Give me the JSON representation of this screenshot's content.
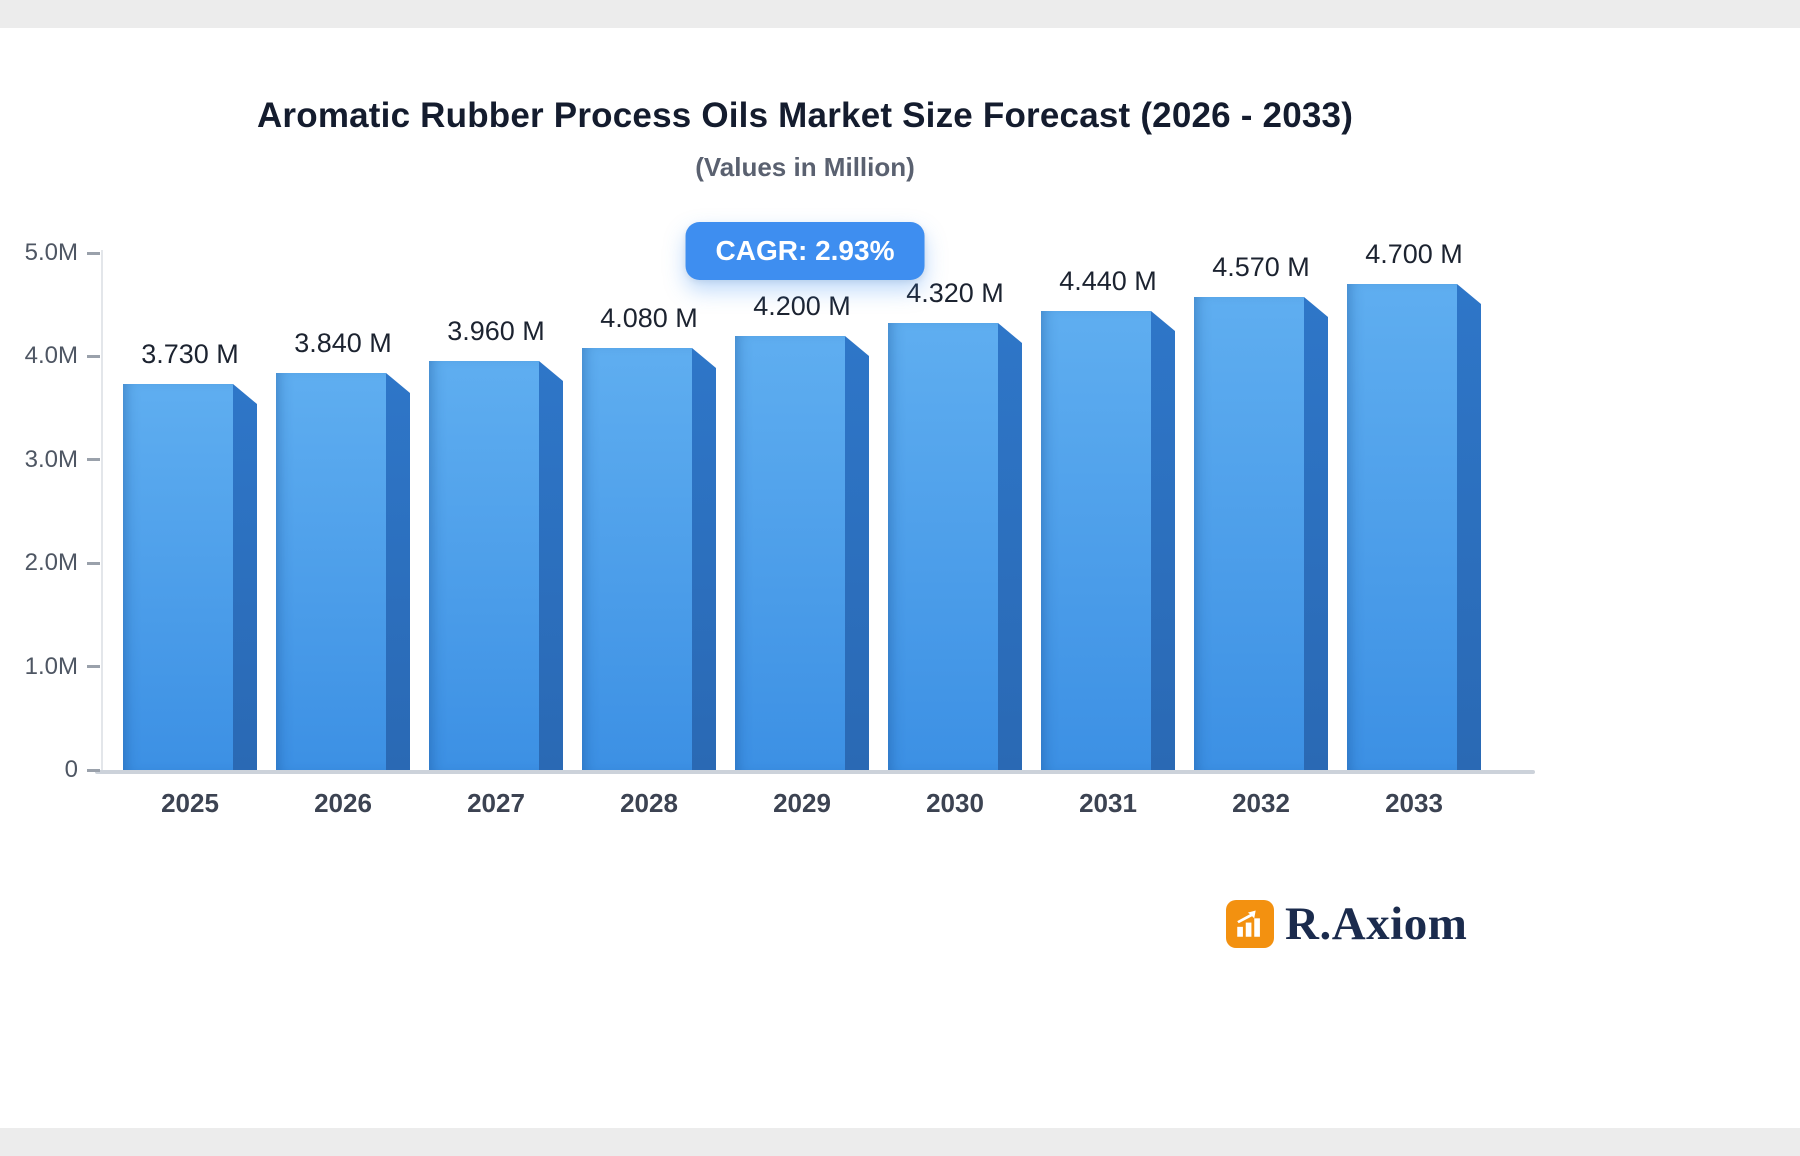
{
  "header": {
    "title": "Aromatic Rubber Process Oils Market Size Forecast (2026 - 2033)",
    "subtitle": "(Values in Million)"
  },
  "badge": {
    "label": "CAGR: 2.93%",
    "bg_color": "#3e8ef0",
    "text_color": "#ffffff"
  },
  "chart_data": {
    "type": "bar",
    "title": "Aromatic Rubber Process Oils Market Size Forecast (2026 - 2033)",
    "subtitle": "(Values in Million)",
    "categories": [
      "2025",
      "2026",
      "2027",
      "2028",
      "2029",
      "2030",
      "2031",
      "2032",
      "2033"
    ],
    "values": [
      3.73,
      3.84,
      3.96,
      4.08,
      4.2,
      4.32,
      4.44,
      4.57,
      4.7
    ],
    "value_labels": [
      "3.730 M",
      "3.840 M",
      "3.960 M",
      "4.080 M",
      "4.200 M",
      "4.320 M",
      "4.440 M",
      "4.570 M",
      "4.700 M"
    ],
    "unit": "Million",
    "cagr": "2.93%",
    "xlabel": "",
    "ylabel": "",
    "ylim": [
      0,
      5
    ],
    "yticks": [
      "0",
      "1.0M",
      "2.0M",
      "3.0M",
      "4.0M",
      "5.0M"
    ],
    "grid": false,
    "legend": "none",
    "colors": {
      "bar_face_top": "#5faef0",
      "bar_face_bottom": "#3c90e4",
      "bar_side": "#2e76c8",
      "axis_line": "#ccd2da"
    }
  },
  "logo": {
    "text": "R.Axiom",
    "icon": "bar-chart-growth-icon",
    "icon_bg": "#f39110",
    "text_color": "#1b2b4d"
  }
}
